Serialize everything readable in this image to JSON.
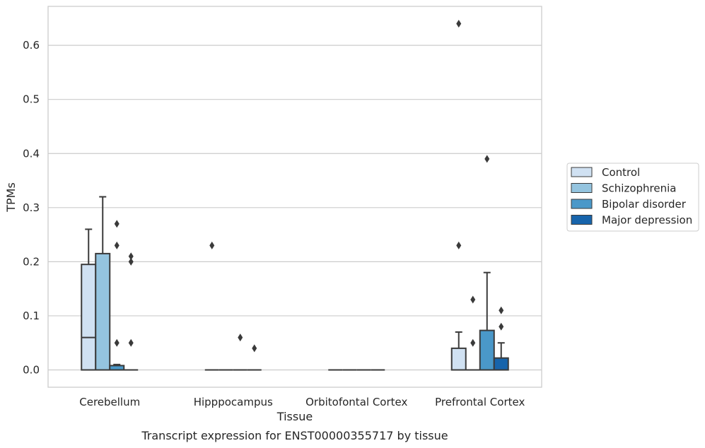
{
  "chart_data": {
    "type": "box",
    "caption": "Transcript expression for ENST00000355717 by tissue",
    "xlabel": "Tissue",
    "ylabel": "TPMs",
    "ylim": [
      -0.032,
      0.672
    ],
    "yticks": [
      "0.0",
      "0.1",
      "0.2",
      "0.3",
      "0.4",
      "0.5",
      "0.6"
    ],
    "grid": true,
    "legend_position": "right",
    "categories": [
      "Cerebellum",
      "Hipppocampus",
      "Orbitofontal Cortex",
      "Prefrontal Cortex"
    ],
    "series": [
      {
        "name": "Control",
        "color": "#d0e1f2",
        "boxes": [
          {
            "q1": 0.0,
            "median": 0.06,
            "q3": 0.195,
            "whisker_low": 0.0,
            "whisker_high": 0.26,
            "outliers": []
          },
          {
            "q1": 0.0,
            "median": 0.0,
            "q3": 0.0,
            "whisker_low": 0.0,
            "whisker_high": 0.0,
            "outliers": [
              0.23
            ]
          },
          {
            "q1": 0.0,
            "median": 0.0,
            "q3": 0.0,
            "whisker_low": 0.0,
            "whisker_high": 0.0,
            "outliers": []
          },
          {
            "q1": 0.0,
            "median": 0.0,
            "q3": 0.04,
            "whisker_low": 0.0,
            "whisker_high": 0.07,
            "outliers": [
              0.23,
              0.64
            ]
          }
        ]
      },
      {
        "name": "Schizophrenia",
        "color": "#94c4df",
        "boxes": [
          {
            "q1": 0.0,
            "median": 0.0,
            "q3": 0.215,
            "whisker_low": 0.0,
            "whisker_high": 0.32,
            "outliers": []
          },
          {
            "q1": 0.0,
            "median": 0.0,
            "q3": 0.0,
            "whisker_low": 0.0,
            "whisker_high": 0.0,
            "outliers": []
          },
          {
            "q1": 0.0,
            "median": 0.0,
            "q3": 0.0,
            "whisker_low": 0.0,
            "whisker_high": 0.0,
            "outliers": []
          },
          {
            "q1": 0.0,
            "median": 0.0,
            "q3": 0.0,
            "whisker_low": 0.0,
            "whisker_high": 0.0,
            "outliers": [
              0.05,
              0.13
            ]
          }
        ]
      },
      {
        "name": "Bipolar disorder",
        "color": "#4a98c9",
        "boxes": [
          {
            "q1": 0.0,
            "median": 0.0,
            "q3": 0.008,
            "whisker_low": 0.0,
            "whisker_high": 0.01,
            "outliers": [
              0.05,
              0.23,
              0.27
            ]
          },
          {
            "q1": 0.0,
            "median": 0.0,
            "q3": 0.0,
            "whisker_low": 0.0,
            "whisker_high": 0.0,
            "outliers": [
              0.06
            ]
          },
          {
            "q1": 0.0,
            "median": 0.0,
            "q3": 0.0,
            "whisker_low": 0.0,
            "whisker_high": 0.0,
            "outliers": []
          },
          {
            "q1": 0.0,
            "median": 0.0,
            "q3": 0.073,
            "whisker_low": 0.0,
            "whisker_high": 0.18,
            "outliers": [
              0.39
            ]
          }
        ]
      },
      {
        "name": "Major depression",
        "color": "#1764ab",
        "boxes": [
          {
            "q1": 0.0,
            "median": 0.0,
            "q3": 0.0,
            "whisker_low": 0.0,
            "whisker_high": 0.0,
            "outliers": [
              0.05,
              0.2,
              0.21
            ]
          },
          {
            "q1": 0.0,
            "median": 0.0,
            "q3": 0.0,
            "whisker_low": 0.0,
            "whisker_high": 0.0,
            "outliers": [
              0.04
            ]
          },
          {
            "q1": 0.0,
            "median": 0.0,
            "q3": 0.0,
            "whisker_low": 0.0,
            "whisker_high": 0.0,
            "outliers": []
          },
          {
            "q1": 0.0,
            "median": 0.0,
            "q3": 0.022,
            "whisker_low": 0.0,
            "whisker_high": 0.05,
            "outliers": [
              0.08,
              0.11
            ]
          }
        ]
      }
    ]
  }
}
